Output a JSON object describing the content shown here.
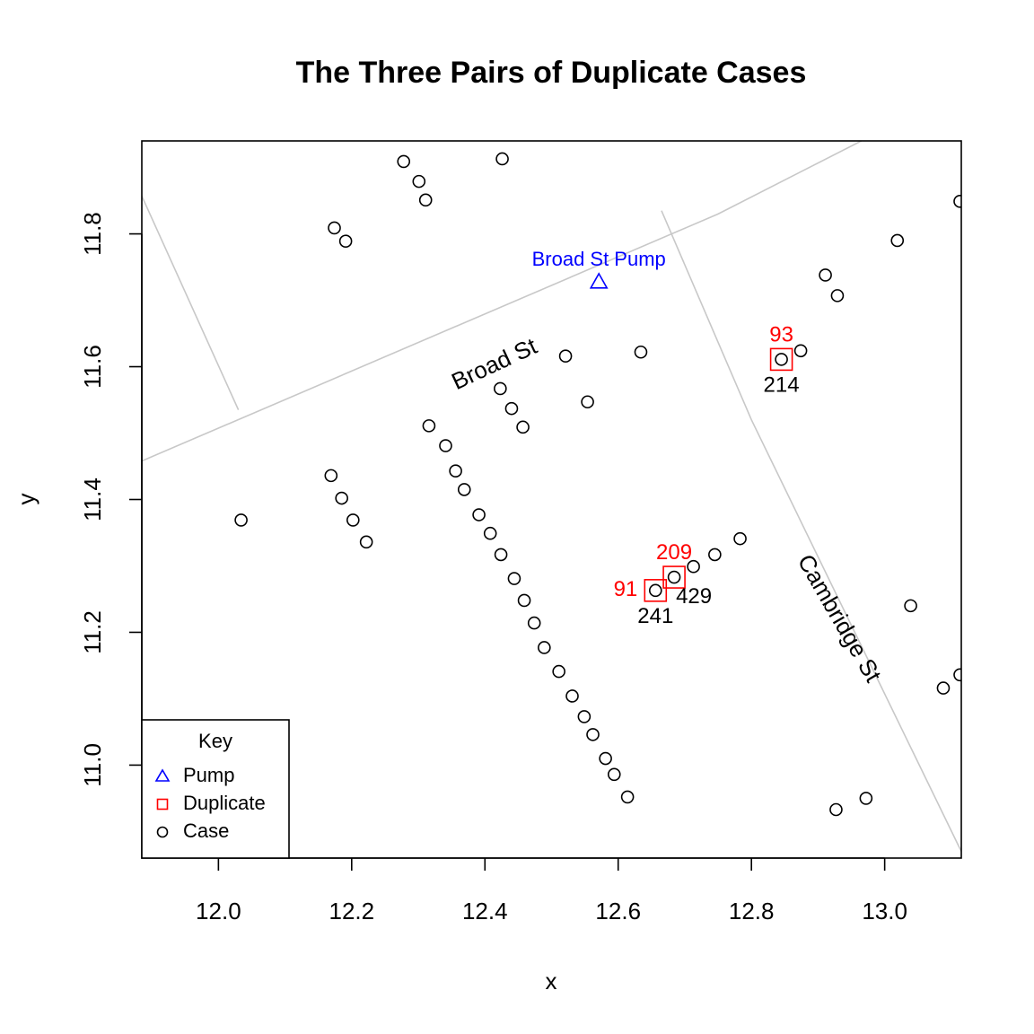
{
  "chart_data": {
    "type": "scatter",
    "title": "The Three Pairs of Duplicate Cases",
    "xlabel": "x",
    "ylabel": "y",
    "xlim": [
      11.885,
      13.115
    ],
    "ylim": [
      10.86,
      11.94
    ],
    "grid": false,
    "x_ticks": [
      "12.0",
      "12.2",
      "12.4",
      "12.6",
      "12.8",
      "13.0"
    ],
    "y_ticks": [
      "11.0",
      "11.2",
      "11.4",
      "11.6",
      "11.8"
    ],
    "colors": {
      "street": "#c8c8c8",
      "pump": "#0000ff",
      "duplicate": "#ff0000",
      "case": "#000000",
      "frame": "#000000"
    },
    "streets": [
      {
        "name": "Broad St",
        "points": [
          [
            11.885,
            11.458
          ],
          [
            12.75,
            11.83
          ],
          [
            12.965,
            11.94
          ]
        ]
      },
      {
        "name": "",
        "points": [
          [
            11.885,
            11.857
          ],
          [
            12.03,
            11.535
          ]
        ]
      },
      {
        "name": "Cambridge St",
        "points": [
          [
            12.665,
            11.835
          ],
          [
            12.8,
            11.52
          ],
          [
            13.115,
            10.87
          ]
        ]
      }
    ],
    "street_labels": [
      {
        "text": "Broad St",
        "x": 12.415,
        "y": 11.602,
        "angle": -25
      },
      {
        "text": "Cambridge St",
        "x": 12.93,
        "y": 11.22,
        "angle": 60
      }
    ],
    "pump": {
      "x": 12.571,
      "y": 11.728,
      "label": "Broad St Pump"
    },
    "duplicates": [
      {
        "x": 12.845,
        "y": 11.611,
        "red_label": "93",
        "black_label": "214"
      },
      {
        "x": 12.684,
        "y": 11.283,
        "red_label": "209",
        "black_label": "429"
      },
      {
        "x": 12.656,
        "y": 11.263,
        "red_label": "91",
        "black_label": "241"
      }
    ],
    "cases": [
      [
        12.278,
        11.909
      ],
      [
        12.301,
        11.879
      ],
      [
        12.311,
        11.851
      ],
      [
        12.426,
        11.913
      ],
      [
        12.174,
        11.809
      ],
      [
        12.191,
        11.789
      ],
      [
        12.634,
        11.622
      ],
      [
        12.521,
        11.616
      ],
      [
        12.423,
        11.567
      ],
      [
        12.44,
        11.537
      ],
      [
        12.457,
        11.509
      ],
      [
        12.554,
        11.547
      ],
      [
        12.316,
        11.511
      ],
      [
        12.341,
        11.481
      ],
      [
        12.356,
        11.443
      ],
      [
        12.369,
        11.415
      ],
      [
        12.391,
        11.377
      ],
      [
        12.408,
        11.349
      ],
      [
        12.424,
        11.317
      ],
      [
        12.444,
        11.281
      ],
      [
        12.459,
        11.248
      ],
      [
        12.474,
        11.214
      ],
      [
        12.489,
        11.177
      ],
      [
        12.511,
        11.141
      ],
      [
        12.531,
        11.104
      ],
      [
        12.549,
        11.073
      ],
      [
        12.562,
        11.046
      ],
      [
        12.581,
        11.01
      ],
      [
        12.594,
        10.986
      ],
      [
        12.614,
        10.952
      ],
      [
        12.169,
        11.436
      ],
      [
        12.185,
        11.402
      ],
      [
        12.202,
        11.369
      ],
      [
        12.222,
        11.336
      ],
      [
        12.034,
        11.369
      ],
      [
        12.911,
        11.738
      ],
      [
        12.929,
        11.707
      ],
      [
        13.019,
        11.79
      ],
      [
        12.874,
        11.624
      ],
      [
        12.845,
        11.611
      ],
      [
        13.113,
        11.849
      ],
      [
        12.783,
        11.341
      ],
      [
        12.745,
        11.317
      ],
      [
        12.713,
        11.299
      ],
      [
        12.684,
        11.283
      ],
      [
        12.656,
        11.263
      ],
      [
        13.039,
        11.24
      ],
      [
        13.088,
        11.116
      ],
      [
        13.113,
        11.136
      ],
      [
        12.972,
        10.95
      ],
      [
        12.927,
        10.933
      ]
    ],
    "legend": {
      "title": "Key",
      "position": "bottom-left",
      "items": [
        {
          "label": "Pump",
          "symbol": "triangle",
          "color": "#0000ff"
        },
        {
          "label": "Duplicate",
          "symbol": "square",
          "color": "#ff0000"
        },
        {
          "label": "Case",
          "symbol": "circle",
          "color": "#000000"
        }
      ]
    }
  }
}
